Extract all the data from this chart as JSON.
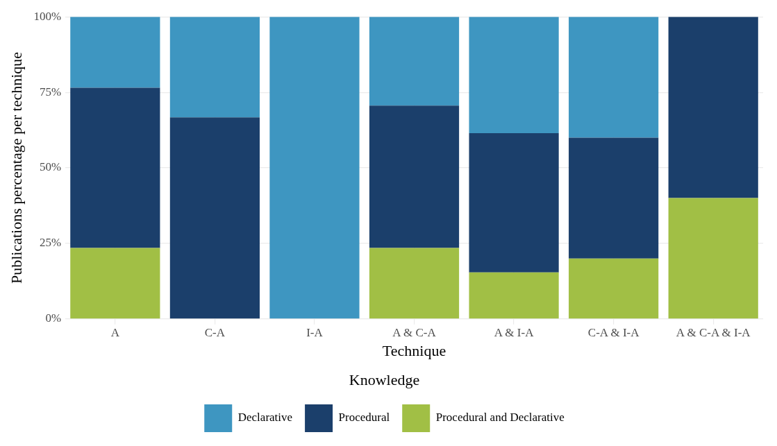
{
  "chart_data": {
    "type": "bar",
    "xlabel": "Technique",
    "ylabel": "Publications percentage per technique",
    "legend_title": "Knowledge",
    "categories": [
      "A",
      "C-A",
      "I-A",
      "A & C-A",
      "A & I-A",
      "C-A & I-A",
      "A & C-A & I-A"
    ],
    "stacked": true,
    "ylim": [
      0,
      100
    ],
    "yticks": [
      {
        "value": 0,
        "label": "0%"
      },
      {
        "value": 25,
        "label": "25%"
      },
      {
        "value": 50,
        "label": "50%"
      },
      {
        "value": 75,
        "label": "75%"
      },
      {
        "value": 100,
        "label": "100%"
      }
    ],
    "grid": true,
    "legend": "bottom",
    "series": [
      {
        "name": "Procedural and Declarative",
        "color": "#a1bf45",
        "values": [
          23.5,
          0,
          0,
          23.5,
          15.4,
          20,
          40
        ]
      },
      {
        "name": "Procedural",
        "color": "#1b3f6b",
        "values": [
          53,
          66.7,
          0,
          47.1,
          46.1,
          40,
          60
        ]
      },
      {
        "name": "Declarative",
        "color": "#3e96c1",
        "values": [
          23.5,
          33.3,
          100,
          29.4,
          38.5,
          40,
          0
        ]
      }
    ]
  }
}
